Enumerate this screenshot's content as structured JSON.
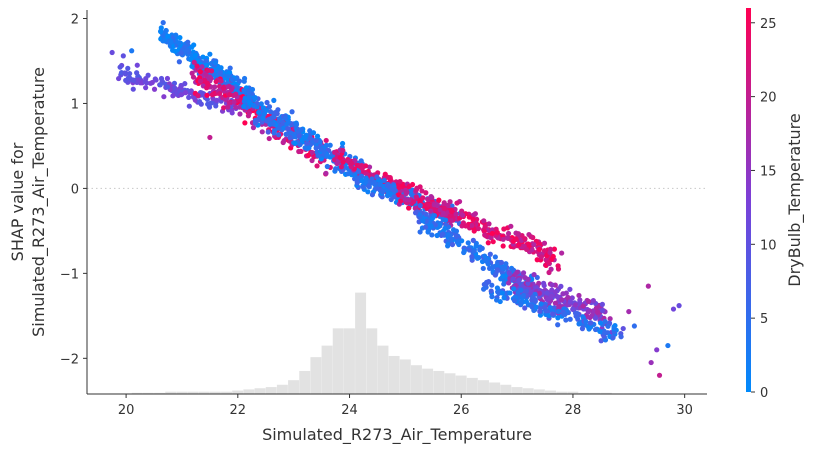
{
  "chart_data": {
    "type": "scatter",
    "xlabel": "Simulated_R273_Air_Temperature",
    "ylabel_lines": [
      "SHAP value for",
      "Simulated_R273_Air_Temperature"
    ],
    "xlim": [
      19.3,
      30.4
    ],
    "ylim": [
      -2.42,
      2.1
    ],
    "x_ticks": [
      20,
      22,
      24,
      26,
      28,
      30
    ],
    "y_ticks": [
      -2,
      -1,
      0,
      1,
      2
    ],
    "zero_line": true,
    "grid": false,
    "colorbar": {
      "label": "DryBulb_Temperature",
      "range": [
        0,
        26
      ],
      "ticks": [
        0,
        5,
        10,
        15,
        20,
        25
      ],
      "colormap": [
        "#008afb",
        "#7b40d8",
        "#ff0052"
      ]
    },
    "histogram": {
      "color": "#e2e2e2",
      "bin_edges": [
        19.7,
        19.9,
        20.1,
        20.3,
        20.5,
        20.7,
        20.9,
        21.1,
        21.3,
        21.5,
        21.7,
        21.9,
        22.1,
        22.3,
        22.5,
        22.7,
        22.9,
        23.1,
        23.3,
        23.5,
        23.7,
        23.9,
        24.1,
        24.3,
        24.5,
        24.7,
        24.9,
        25.1,
        25.3,
        25.5,
        25.7,
        25.9,
        26.1,
        26.3,
        26.5,
        26.7,
        26.9,
        27.1,
        27.3,
        27.5,
        27.7,
        27.9,
        28.1,
        28.3,
        28.5,
        28.7,
        28.9,
        29.1,
        29.3,
        29.5,
        29.7,
        29.9
      ],
      "relative_counts": [
        0.005,
        0.005,
        0.01,
        0.01,
        0.01,
        0.02,
        0.02,
        0.02,
        0.02,
        0.02,
        0.02,
        0.03,
        0.04,
        0.05,
        0.06,
        0.08,
        0.12,
        0.2,
        0.32,
        0.42,
        0.57,
        0.57,
        0.88,
        0.57,
        0.42,
        0.33,
        0.3,
        0.25,
        0.22,
        0.2,
        0.18,
        0.16,
        0.14,
        0.12,
        0.1,
        0.08,
        0.06,
        0.05,
        0.04,
        0.03,
        0.02,
        0.02,
        0.01,
        0.01,
        0.01,
        0.005,
        0.005,
        0.005,
        0.003,
        0.003,
        0.003
      ]
    },
    "trend_bands": [
      {
        "x0": 20.6,
        "y0": 1.82,
        "x1": 22.3,
        "y1": 1.05,
        "spread": 0.13,
        "colors": [
          0,
          3,
          5
        ],
        "weight": 1.2
      },
      {
        "x0": 19.9,
        "y0": 1.35,
        "x1": 22.0,
        "y1": 0.95,
        "spread": 0.1,
        "colors": [
          9,
          11,
          13
        ],
        "weight": 0.7
      },
      {
        "x0": 21.2,
        "y0": 1.35,
        "x1": 23.6,
        "y1": 0.35,
        "spread": 0.17,
        "colors": [
          18,
          20,
          23,
          26
        ],
        "weight": 1.3
      },
      {
        "x0": 22.1,
        "y0": 1.05,
        "x1": 24.2,
        "y1": 0.18,
        "spread": 0.15,
        "colors": [
          1,
          3,
          5,
          7
        ],
        "weight": 1.3
      },
      {
        "x0": 23.7,
        "y0": 0.4,
        "x1": 25.0,
        "y1": -0.05,
        "spread": 0.1,
        "colors": [
          18,
          22,
          24
        ],
        "weight": 0.6
      },
      {
        "x0": 24.1,
        "y0": 0.12,
        "x1": 26.0,
        "y1": -0.35,
        "spread": 0.1,
        "colors": [
          2,
          4,
          6
        ],
        "weight": 1.0
      },
      {
        "x0": 24.9,
        "y0": -0.05,
        "x1": 27.8,
        "y1": -0.85,
        "spread": 0.15,
        "colors": [
          19,
          22,
          25
        ],
        "weight": 1.5
      },
      {
        "x0": 25.2,
        "y0": -0.3,
        "x1": 27.3,
        "y1": -1.2,
        "spread": 0.14,
        "colors": [
          2,
          4,
          7
        ],
        "weight": 1.2
      },
      {
        "x0": 26.8,
        "y0": -1.05,
        "x1": 28.7,
        "y1": -1.55,
        "spread": 0.14,
        "colors": [
          11,
          13,
          15,
          17
        ],
        "weight": 1.1
      },
      {
        "x0": 26.4,
        "y0": -1.15,
        "x1": 28.9,
        "y1": -1.75,
        "spread": 0.1,
        "colors": [
          2,
          4,
          6,
          8
        ],
        "weight": 0.8
      }
    ],
    "outlier_points": [
      {
        "x": 29.35,
        "y": -1.15,
        "c": 18
      },
      {
        "x": 29.5,
        "y": -1.9,
        "c": 14
      },
      {
        "x": 29.55,
        "y": -2.2,
        "c": 20
      },
      {
        "x": 29.4,
        "y": -2.05,
        "c": 16
      },
      {
        "x": 29.7,
        "y": -1.85,
        "c": 3
      },
      {
        "x": 29.8,
        "y": -1.42,
        "c": 12
      },
      {
        "x": 29.9,
        "y": -1.38,
        "c": 11
      },
      {
        "x": 28.9,
        "y": -1.65,
        "c": 10
      },
      {
        "x": 29.0,
        "y": -1.45,
        "c": 17
      },
      {
        "x": 29.1,
        "y": -1.62,
        "c": 5
      },
      {
        "x": 19.75,
        "y": 1.6,
        "c": 11
      },
      {
        "x": 19.95,
        "y": 1.56,
        "c": 10
      },
      {
        "x": 20.1,
        "y": 1.62,
        "c": 3
      },
      {
        "x": 20.2,
        "y": 1.45,
        "c": 12
      },
      {
        "x": 21.5,
        "y": 1.58,
        "c": 1
      },
      {
        "x": 21.6,
        "y": 1.48,
        "c": 2
      },
      {
        "x": 21.7,
        "y": 1.42,
        "c": 1
      },
      {
        "x": 21.9,
        "y": 1.28,
        "c": 4
      },
      {
        "x": 21.5,
        "y": 0.6,
        "c": 20
      },
      {
        "x": 24.8,
        "y": -0.1,
        "c": 7
      }
    ]
  }
}
